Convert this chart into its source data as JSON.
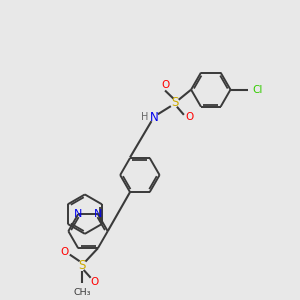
{
  "bg_color": "#e8e8e8",
  "atom_colors": {
    "C": "#3a3a3a",
    "N": "#0000ee",
    "O": "#ff0000",
    "S": "#ccaa00",
    "Cl": "#33cc00",
    "H": "#666666"
  },
  "bond_color": "#3a3a3a"
}
